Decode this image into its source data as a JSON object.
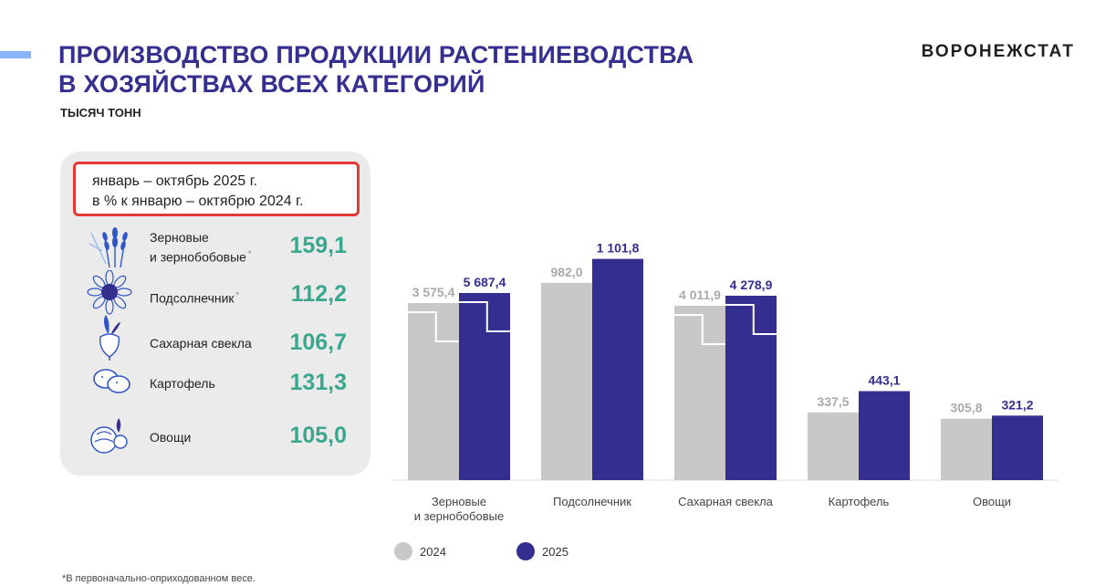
{
  "header": {
    "title_line1": "ПРОИЗВОДСТВО ПРОДУКЦИИ РАСТЕНИЕВОДСТВА",
    "title_line2": "В ХОЗЯЙСТВАХ ВСЕХ КАТЕГОРИЙ",
    "units": "ТЫСЯЧ ТОНН",
    "brand": "ВОРОНЕЖСТАТ"
  },
  "panel": {
    "period_line1": "январь – октябрь 2025 г.",
    "period_line2": "в % к январю – октябрю 2024 г.",
    "items": [
      {
        "name_line1": "Зерновые",
        "name_line2": "и зернобобовые",
        "mark": "*",
        "value": "159,1",
        "icon": "wheat-icon"
      },
      {
        "name_line1": "Подсолнечник",
        "name_line2": "",
        "mark": "*",
        "value": "112,2",
        "icon": "sunflower-icon"
      },
      {
        "name_line1": "Сахарная свекла",
        "name_line2": "",
        "mark": "",
        "value": "106,7",
        "icon": "sugar-beet-icon"
      },
      {
        "name_line1": "Картофель",
        "name_line2": "",
        "mark": "",
        "value": "131,3",
        "icon": "potato-icon"
      },
      {
        "name_line1": "Овощи",
        "name_line2": "",
        "mark": "",
        "value": "105,0",
        "icon": "vegetables-icon"
      }
    ]
  },
  "chart_data": {
    "type": "bar",
    "categories": [
      "Зерновые\nи зернобобовые",
      "Подсолнечник",
      "Сахарная свекла",
      "Картофель",
      "Овощи"
    ],
    "series": [
      {
        "name": "2024",
        "values": [
          3575.4,
          982.0,
          4011.9,
          337.5,
          305.8
        ],
        "labels": [
          "3 575,4",
          "982,0",
          "4 011,9",
          "337,5",
          "305,8"
        ],
        "color": "#c8c8c8",
        "label_color": "#aaaaaa"
      },
      {
        "name": "2025",
        "values": [
          5687.4,
          1101.8,
          4278.9,
          443.1,
          321.2
        ],
        "labels": [
          "5 687,4",
          "1 101,8",
          "4 278,9",
          "443,1",
          "321,2"
        ],
        "color": "#332e8f",
        "label_color": "#332e8f"
      }
    ],
    "axis_break": "broken bars for Зерновые и зернобобовые and Сахарная свекла",
    "legend": "bottom",
    "grid": false
  },
  "legend": [
    {
      "label": "2024",
      "color": "#c8c8c8"
    },
    {
      "label": "2025",
      "color": "#332e8f"
    }
  ],
  "footnote": "*В первоначально-оприходованном весе."
}
